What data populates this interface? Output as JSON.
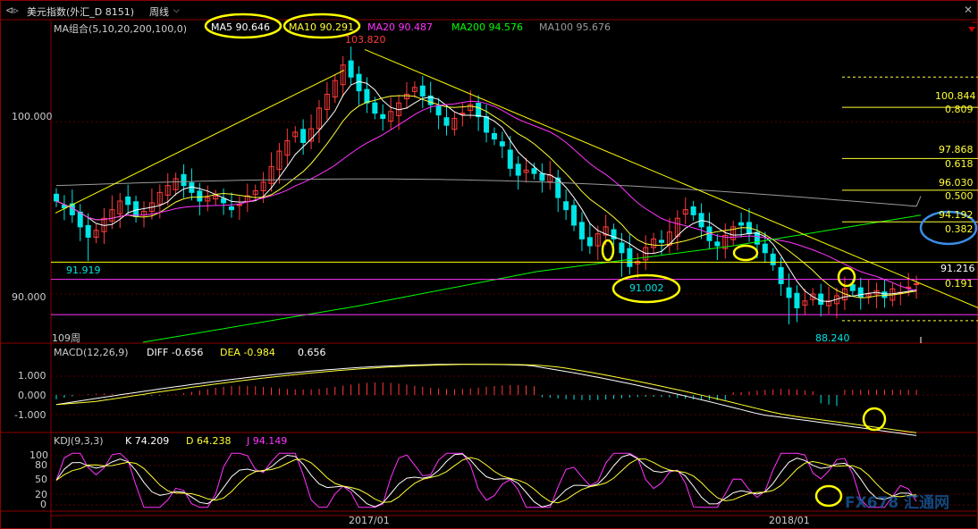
{
  "window": {
    "title": "美元指数(外汇_D 8151)",
    "period": "周线",
    "period_chevron": "chevron-down-icon"
  },
  "ma_legend": {
    "group": "MA组合(5,10,20,200,100,0)",
    "ma5": "MA5 90.646",
    "ma10": "MA10 90.291",
    "ma20": "MA20 90.487",
    "ma200": "MA200 94.576",
    "ma100": "MA100 95.676"
  },
  "macd_legend": {
    "name": "MACD(12,26,9)",
    "diff": "DIFF -0.656",
    "dea": "DEA -0.984",
    "macd": "0.656"
  },
  "kdj_legend": {
    "name": "KDJ(9,3,3)",
    "k": "K 74.209",
    "d": "D 64.238",
    "j": "J 94.149"
  },
  "price_axis": [
    "100.000",
    "90.000"
  ],
  "macd_axis": [
    "1.000",
    "0.000",
    "-1.000"
  ],
  "kdj_axis": [
    "100",
    "80",
    "50",
    "20",
    "0"
  ],
  "time_axis": [
    "2017/01",
    "2018/01"
  ],
  "bar_count": "109周",
  "annotations": {
    "high": "103.820",
    "low_left": "91.919",
    "mid_low": "91.002",
    "low": "88.240",
    "last": "91.216"
  },
  "fib_levels": [
    {
      "price": "100.844",
      "ratio": "0.809"
    },
    {
      "price": "97.868",
      "ratio": "0.618"
    },
    {
      "price": "96.030",
      "ratio": "0.500"
    },
    {
      "price": "94.192",
      "ratio": "0.382"
    },
    {
      "price": "91.216",
      "ratio": "0.191"
    }
  ],
  "watermark": "FX678 汇通网",
  "colors": {
    "up": "#ff3b3b",
    "down": "#00e5e5",
    "ma5": "#ffffff",
    "ma10": "#ffff33",
    "ma20": "#ff33ff",
    "ma200": "#00ff00",
    "ma100": "#9a9a9a",
    "fib": "#ffff33",
    "trend": "#ffff00",
    "magenta_line": "#ff33ff",
    "highlight": "#ffff00",
    "blue_highlight": "#3a8ee6"
  },
  "chart_data": {
    "type": "candlestick",
    "timeframe": "weekly",
    "price_range": [
      87.2,
      105.0
    ],
    "key_prices": {
      "high": 103.82,
      "mid_low": 91.002,
      "low": 88.24,
      "left_low": 91.919
    },
    "price_closes": [
      95.4,
      95.0,
      94.6,
      93.9,
      93.3,
      93.7,
      94.4,
      94.9,
      95.4,
      95.2,
      94.5,
      94.8,
      95.3,
      95.9,
      96.3,
      96.7,
      96.3,
      95.9,
      95.4,
      95.6,
      95.7,
      95.3,
      94.9,
      95.2,
      95.7,
      96.0,
      96.5,
      97.4,
      98.3,
      98.9,
      99.4,
      98.8,
      99.6,
      100.8,
      101.6,
      102.4,
      103.3,
      102.6,
      101.8,
      101.1,
      100.5,
      100.2,
      100.6,
      101.1,
      101.6,
      102.0,
      101.5,
      101.0,
      100.4,
      99.8,
      100.2,
      100.5,
      101.0,
      100.3,
      99.4,
      99.0,
      98.6,
      97.3,
      96.9,
      97.2,
      97.0,
      96.6,
      96.9,
      95.6,
      94.9,
      94.0,
      93.2,
      92.8,
      93.5,
      93.9,
      93.2,
      92.4,
      91.6,
      91.9,
      92.7,
      93.2,
      93.0,
      93.6,
      94.4,
      94.9,
      94.6,
      93.9,
      93.1,
      92.8,
      93.4,
      93.9,
      94.0,
      93.5,
      92.9,
      92.4,
      91.7,
      90.6,
      89.8,
      89.2,
      89.6,
      90.0,
      89.4,
      89.6,
      89.9,
      90.3,
      90.2,
      89.8,
      90.0,
      90.2,
      89.8,
      90.3,
      90.1,
      90.4,
      90.6
    ],
    "macd": {
      "diff_last": -0.656,
      "dea_last": -0.984,
      "hist_last": 0.656,
      "range": [
        -1.6,
        2.0
      ]
    },
    "kdj": {
      "k_last": 74.209,
      "d_last": 64.238,
      "j_last": 94.149,
      "range": [
        0,
        100
      ]
    },
    "fibonacci": [
      {
        "ratio": 0.809,
        "price": 100.844
      },
      {
        "ratio": 0.618,
        "price": 97.868
      },
      {
        "ratio": 0.5,
        "price": 96.03
      },
      {
        "ratio": 0.382,
        "price": 94.192
      },
      {
        "ratio": 0.191,
        "price": 91.216
      }
    ]
  }
}
